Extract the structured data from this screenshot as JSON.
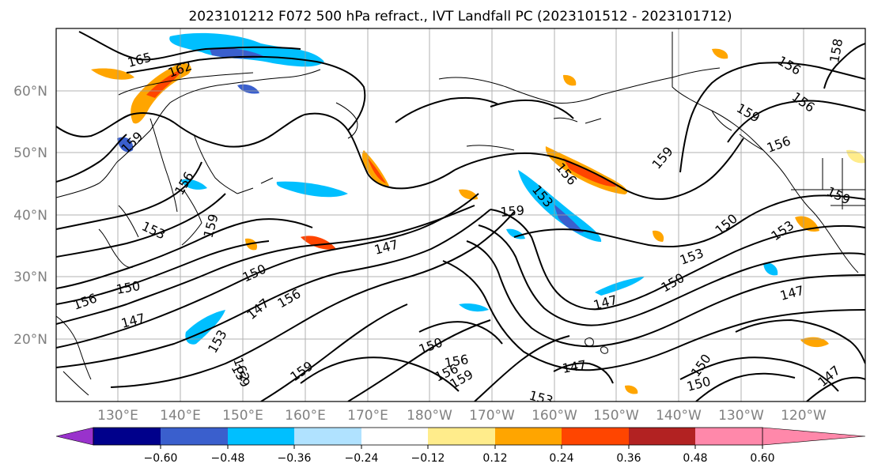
{
  "title": "2023101212 F072 500 hPa refract., IVT Landfall PC (2023101512 - 2023101712)",
  "lat_labels": [
    "60°N",
    "50°N",
    "40°N",
    "30°N",
    "20°N"
  ],
  "lon_labels": [
    "130°E",
    "140°E",
    "150°E",
    "160°E",
    "170°E",
    "180°W",
    "170°W",
    "160°W",
    "150°W",
    "140°W",
    "130°W",
    "120°W"
  ],
  "colorbar": {
    "ticks": [
      "−0.60",
      "−0.48",
      "−0.36",
      "−0.24",
      "−0.12",
      "0.12",
      "0.24",
      "0.36",
      "0.48",
      "0.60"
    ],
    "colors": [
      "#9932cc",
      "#00008b",
      "#3a5fcd",
      "#00bfff",
      "#b0e2ff",
      "#ffffff",
      "#ffec8b",
      "#ffa500",
      "#ff4500",
      "#b22222",
      "#ff88aa"
    ]
  },
  "contour_labels": [
    "165",
    "162",
    "159",
    "156",
    "153",
    "150",
    "147",
    "159",
    "156",
    "153",
    "150",
    "147",
    "159",
    "156",
    "159",
    "156",
    "153",
    "150",
    "147",
    "162",
    "159",
    "156",
    "153",
    "150",
    "147",
    "156",
    "159",
    "156",
    "150",
    "147",
    "153",
    "150",
    "147",
    "159",
    "156",
    "159",
    "153",
    "150",
    "147",
    "156",
    "158",
    "159"
  ],
  "colors": {
    "land": "#000000",
    "grid": "#a0a0a0",
    "contour": "#000000"
  }
}
